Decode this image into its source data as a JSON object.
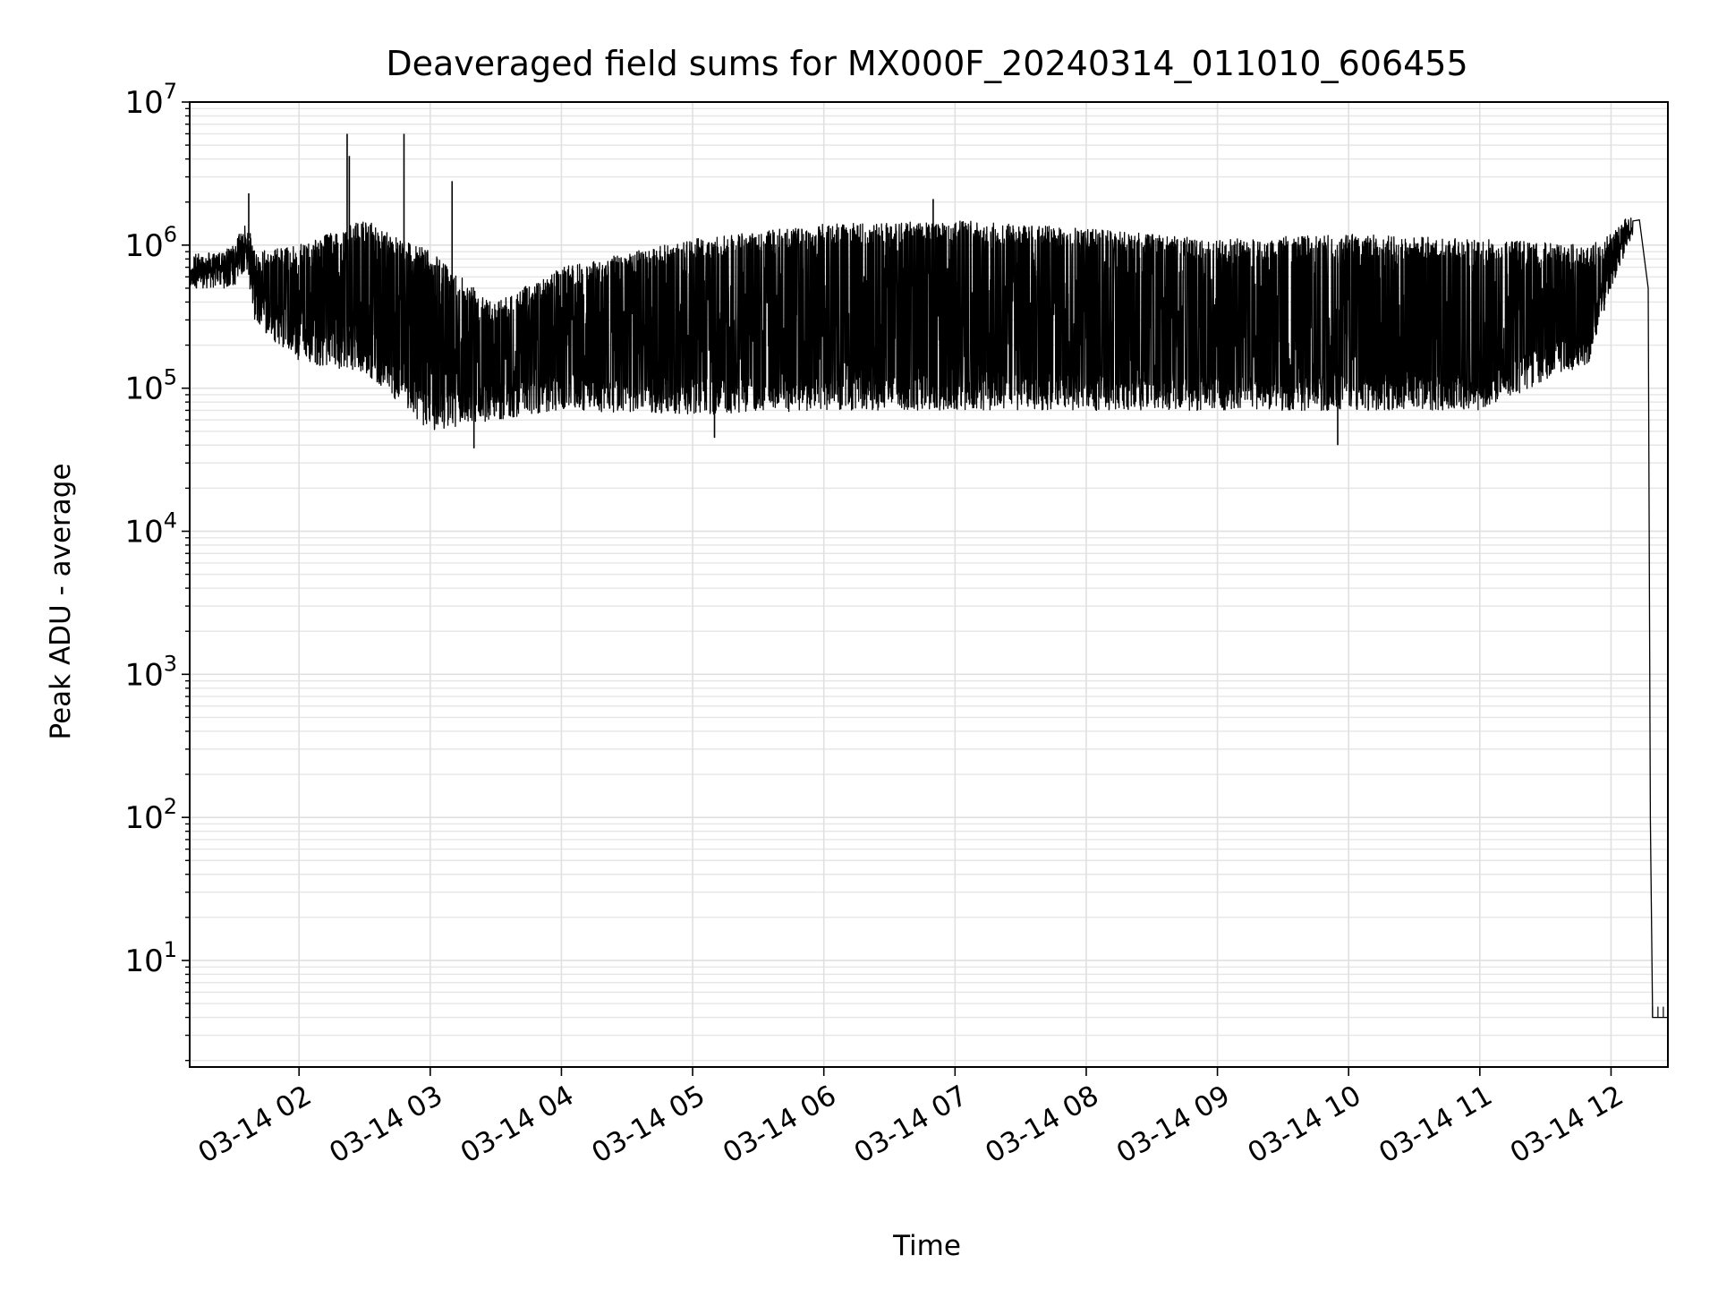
{
  "chart_data": {
    "type": "line",
    "title": "Deaveraged field sums for MX000F_20240314_011010_606455",
    "xlabel": "Time",
    "ylabel": "Peak ADU - average",
    "y_scale": "log",
    "ylim": [
      1.8,
      10000000
    ],
    "xlim": [
      "2024-03-14 01:10",
      "2024-03-14 12:26"
    ],
    "grid": true,
    "x_ticks": [
      {
        "t": "2024-03-14 02:00",
        "label": "03-14 02"
      },
      {
        "t": "2024-03-14 03:00",
        "label": "03-14 03"
      },
      {
        "t": "2024-03-14 04:00",
        "label": "03-14 04"
      },
      {
        "t": "2024-03-14 05:00",
        "label": "03-14 05"
      },
      {
        "t": "2024-03-14 06:00",
        "label": "03-14 06"
      },
      {
        "t": "2024-03-14 07:00",
        "label": "03-14 07"
      },
      {
        "t": "2024-03-14 08:00",
        "label": "03-14 08"
      },
      {
        "t": "2024-03-14 09:00",
        "label": "03-14 09"
      },
      {
        "t": "2024-03-14 10:00",
        "label": "03-14 10"
      },
      {
        "t": "2024-03-14 11:00",
        "label": "03-14 11"
      },
      {
        "t": "2024-03-14 12:00",
        "label": "03-14 12"
      }
    ],
    "y_ticks": [
      {
        "value": 10,
        "base": "10",
        "exp": "1"
      },
      {
        "value": 100,
        "base": "10",
        "exp": "2"
      },
      {
        "value": 1000,
        "base": "10",
        "exp": "3"
      },
      {
        "value": 10000,
        "base": "10",
        "exp": "4"
      },
      {
        "value": 100000,
        "base": "10",
        "exp": "5"
      },
      {
        "value": 1000000,
        "base": "10",
        "exp": "6"
      },
      {
        "value": 10000000,
        "base": "10",
        "exp": "7"
      }
    ],
    "series": [
      {
        "color": "#000000",
        "envelope": [
          {
            "t": "2024-03-14 01:10",
            "low": 500000,
            "high": 700000
          },
          {
            "t": "2024-03-14 01:30",
            "low": 500000,
            "high": 1000000
          },
          {
            "t": "2024-03-14 01:36",
            "low": 700000,
            "high": 1500000
          },
          {
            "t": "2024-03-14 01:40",
            "low": 280000,
            "high": 900000
          },
          {
            "t": "2024-03-14 02:00",
            "low": 150000,
            "high": 1000000
          },
          {
            "t": "2024-03-14 02:30",
            "low": 130000,
            "high": 1500000
          },
          {
            "t": "2024-03-14 03:00",
            "low": 50000,
            "high": 900000
          },
          {
            "t": "2024-03-14 03:30",
            "low": 60000,
            "high": 400000
          },
          {
            "t": "2024-03-14 04:00",
            "low": 70000,
            "high": 700000
          },
          {
            "t": "2024-03-14 05:00",
            "low": 65000,
            "high": 1100000
          },
          {
            "t": "2024-03-14 06:00",
            "low": 70000,
            "high": 1400000
          },
          {
            "t": "2024-03-14 07:00",
            "low": 70000,
            "high": 1500000
          },
          {
            "t": "2024-03-14 08:00",
            "low": 70000,
            "high": 1300000
          },
          {
            "t": "2024-03-14 09:00",
            "low": 70000,
            "high": 1100000
          },
          {
            "t": "2024-03-14 10:00",
            "low": 70000,
            "high": 1200000
          },
          {
            "t": "2024-03-14 11:00",
            "low": 70000,
            "high": 1100000
          },
          {
            "t": "2024-03-14 11:50",
            "low": 150000,
            "high": 1000000
          },
          {
            "t": "2024-03-14 12:00",
            "low": 500000,
            "high": 1200000
          },
          {
            "t": "2024-03-14 12:10",
            "low": 1200000,
            "high": 1600000
          }
        ],
        "spikes": [
          {
            "t": "2024-03-14 01:37",
            "value": 2300000
          },
          {
            "t": "2024-03-14 02:22",
            "value": 6000000
          },
          {
            "t": "2024-03-14 02:23",
            "value": 4200000
          },
          {
            "t": "2024-03-14 02:48",
            "value": 6000000
          },
          {
            "t": "2024-03-14 03:10",
            "value": 2800000
          },
          {
            "t": "2024-03-14 06:50",
            "value": 2100000
          },
          {
            "t": "2024-03-14 03:20",
            "value": 38000
          },
          {
            "t": "2024-03-14 09:55",
            "value": 40000
          },
          {
            "t": "2024-03-14 05:10",
            "value": 45000
          }
        ],
        "drop": [
          {
            "t": "2024-03-14 12:13",
            "value": 1500000
          },
          {
            "t": "2024-03-14 12:17",
            "value": 500000
          },
          {
            "t": "2024-03-14 12:18",
            "value": 100
          },
          {
            "t": "2024-03-14 12:19",
            "value": 4
          },
          {
            "t": "2024-03-14 12:26",
            "value": 4
          }
        ]
      }
    ]
  }
}
